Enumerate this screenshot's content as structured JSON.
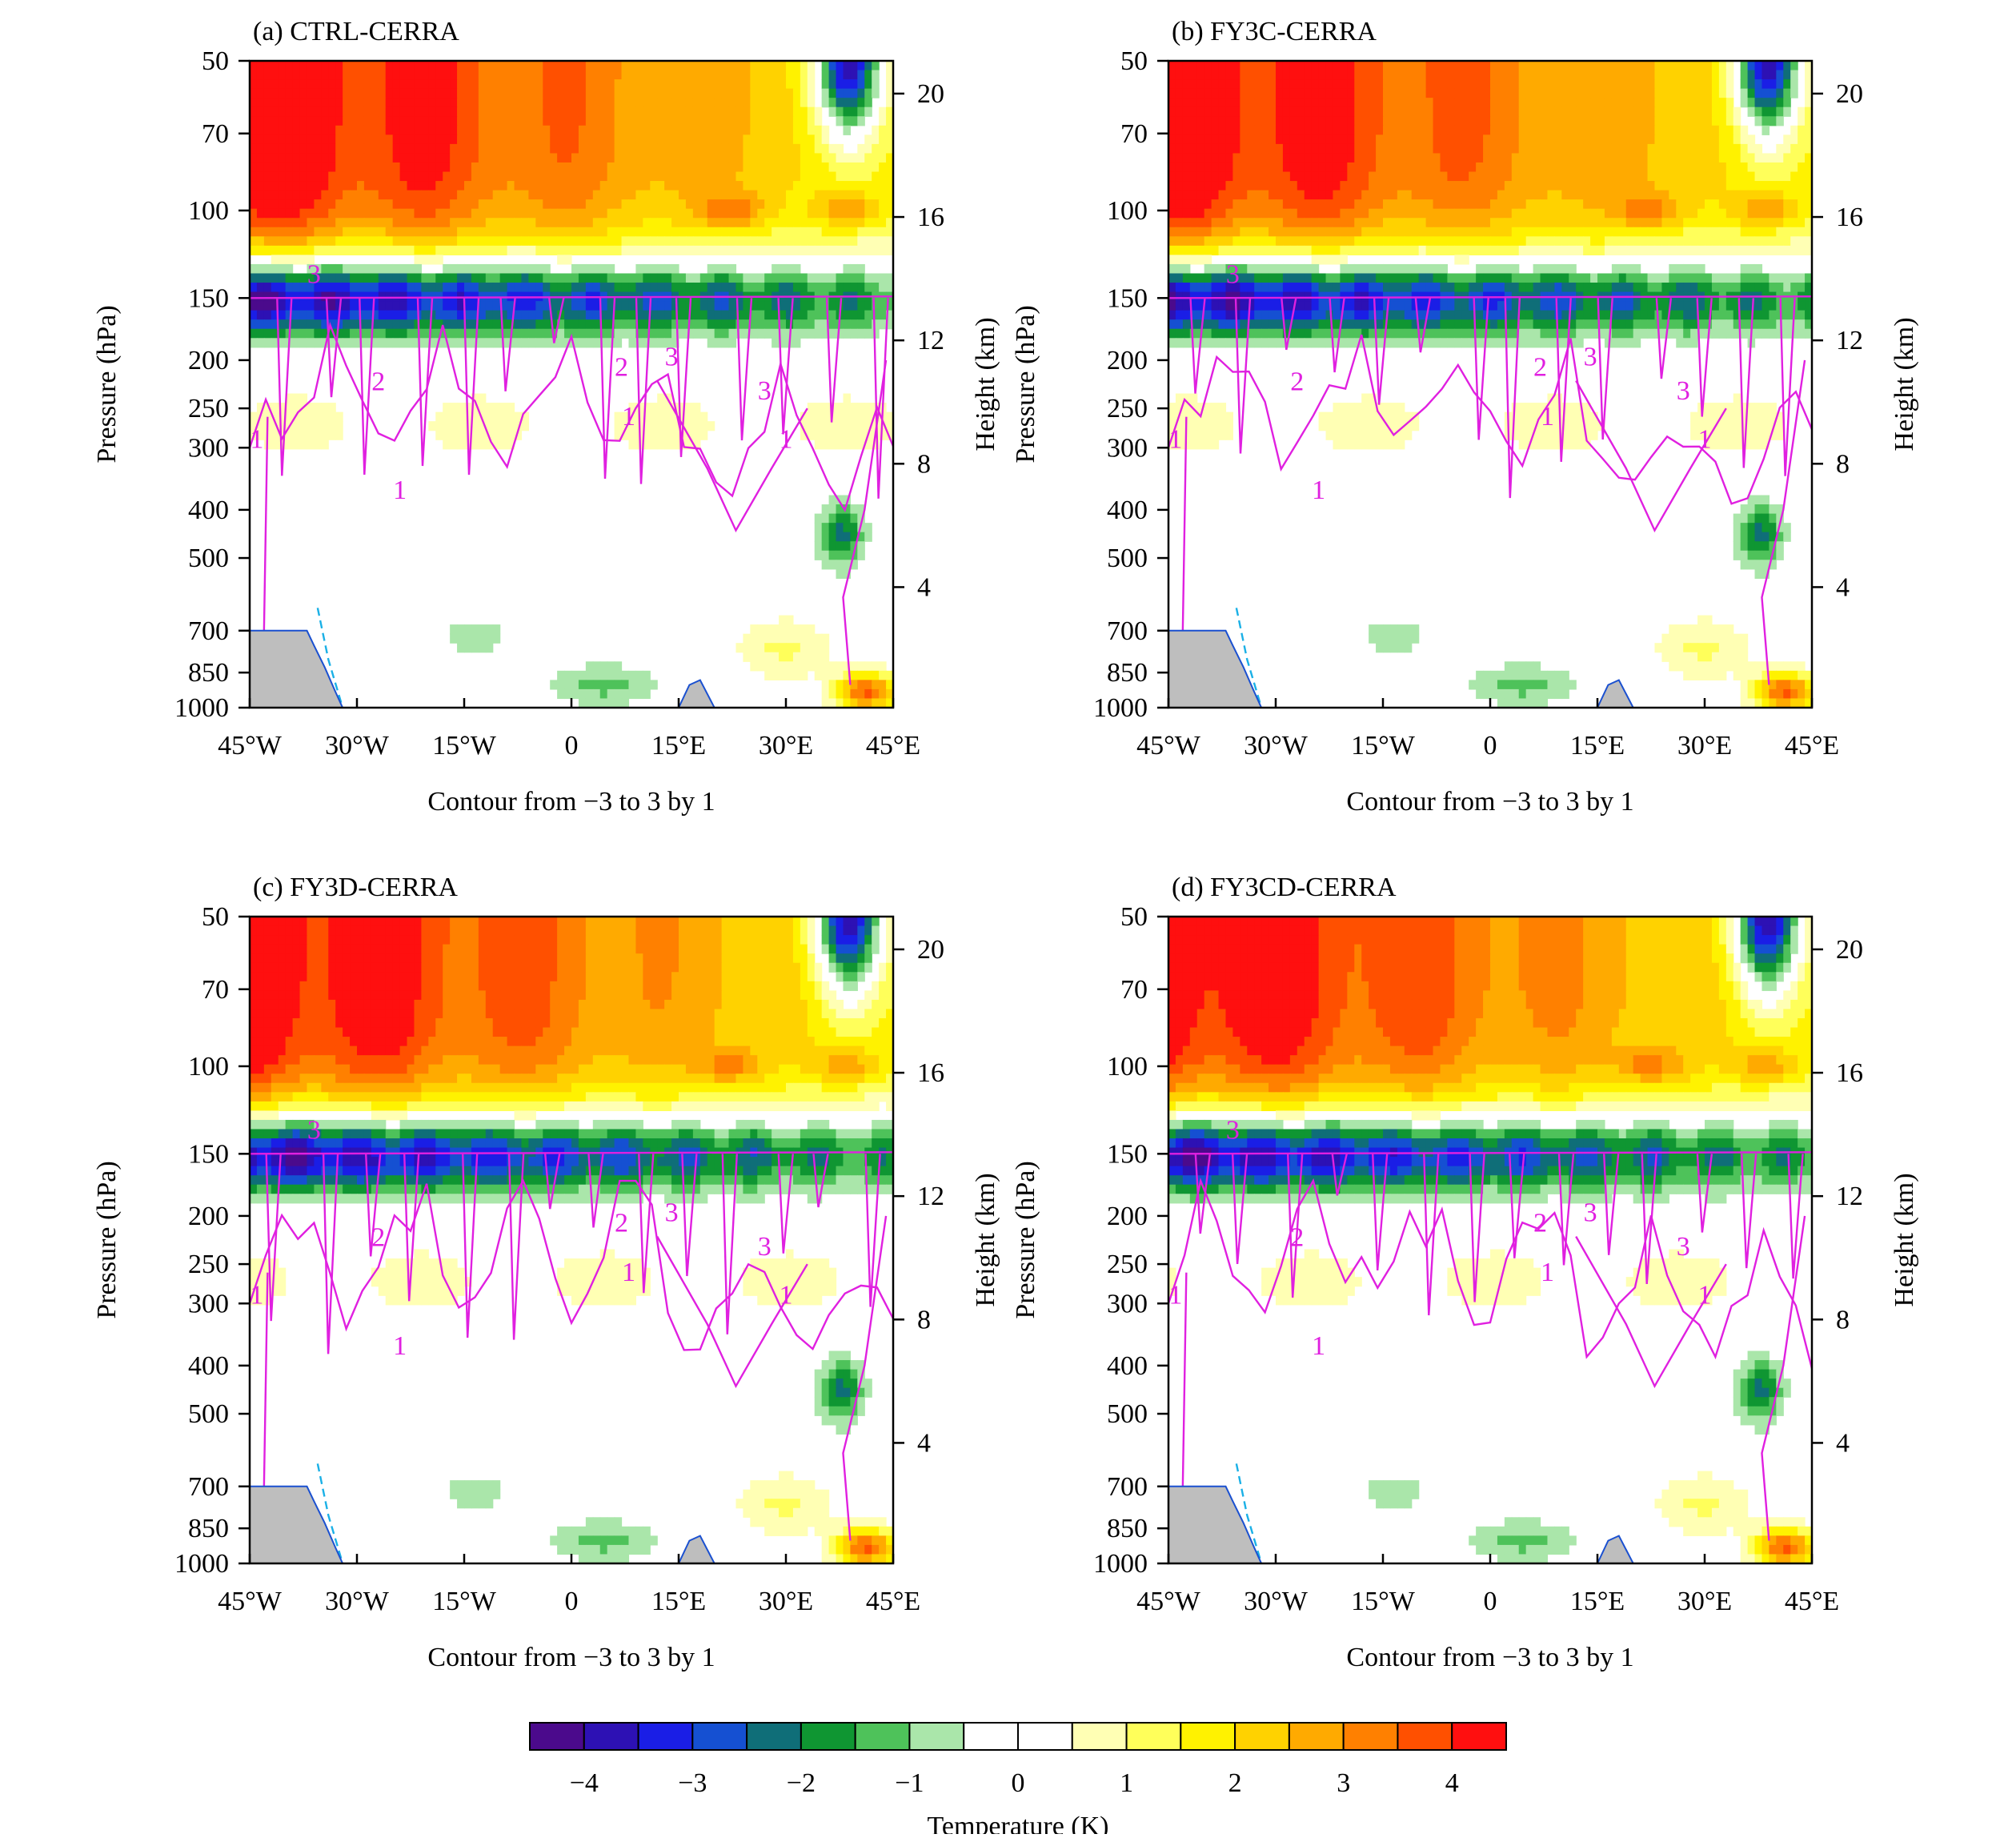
{
  "chart_data": {
    "type": "heatmap",
    "panels": [
      {
        "id": "a",
        "title": "(a) CTRL-CERRA",
        "contour_note": "Contour from −3 to 3 by 1"
      },
      {
        "id": "b",
        "title": "(b) FY3C-CERRA",
        "contour_note": "Contour from −3 to 3 by 1"
      },
      {
        "id": "c",
        "title": "(c) FY3D-CERRA",
        "contour_note": "Contour from −3 to 3 by 1"
      },
      {
        "id": "d",
        "title": "(d) FY3CD-CERRA",
        "contour_note": "Contour from −3 to 3 by 1"
      }
    ],
    "x_axis": {
      "range": [
        -45,
        45
      ],
      "ticks": [
        -45,
        -30,
        -15,
        0,
        15,
        30,
        45
      ],
      "tick_labels": [
        "45°W",
        "30°W",
        "15°W",
        "0",
        "15°E",
        "30°E",
        "45°E"
      ]
    },
    "y_axis_left": {
      "label": "Pressure (hPa)",
      "scale": "log",
      "range": [
        1000,
        50
      ],
      "ticks": [
        50,
        70,
        100,
        150,
        200,
        250,
        300,
        400,
        500,
        700,
        850,
        1000
      ]
    },
    "y_axis_right": {
      "label": "Height (km)",
      "ticks": [
        20,
        16,
        12,
        8,
        4
      ]
    },
    "colorbar": {
      "label": "Temperature (K)",
      "levels": [
        -4.5,
        -4,
        -3.5,
        -3,
        -2.5,
        -2,
        -1.5,
        -1,
        -0.5,
        0,
        0.5,
        1,
        1.5,
        2,
        2.5,
        3,
        3.5,
        4,
        4.5
      ],
      "tick_values": [
        -4,
        -3,
        -2,
        -1,
        0,
        1,
        2,
        3,
        4
      ],
      "tick_labels": [
        "−4",
        "−3",
        "−2",
        "−1",
        "0",
        "1",
        "2",
        "3",
        "4"
      ],
      "colors": [
        "#4b0a8c",
        "#2d11b4",
        "#1a1ee6",
        "#1550d2",
        "#0f6e78",
        "#0f9632",
        "#4ec25a",
        "#aae6aa",
        "#ffffff",
        "#ffffff",
        "#ffffb4",
        "#ffff5a",
        "#fff200",
        "#ffd200",
        "#ffaa00",
        "#ff8000",
        "#ff5000",
        "#ff0f0f"
      ]
    },
    "contour_line_color": "#e020e0",
    "terrain_color": "#bebebe",
    "contour_labels": [
      "1",
      "2",
      "3"
    ]
  }
}
